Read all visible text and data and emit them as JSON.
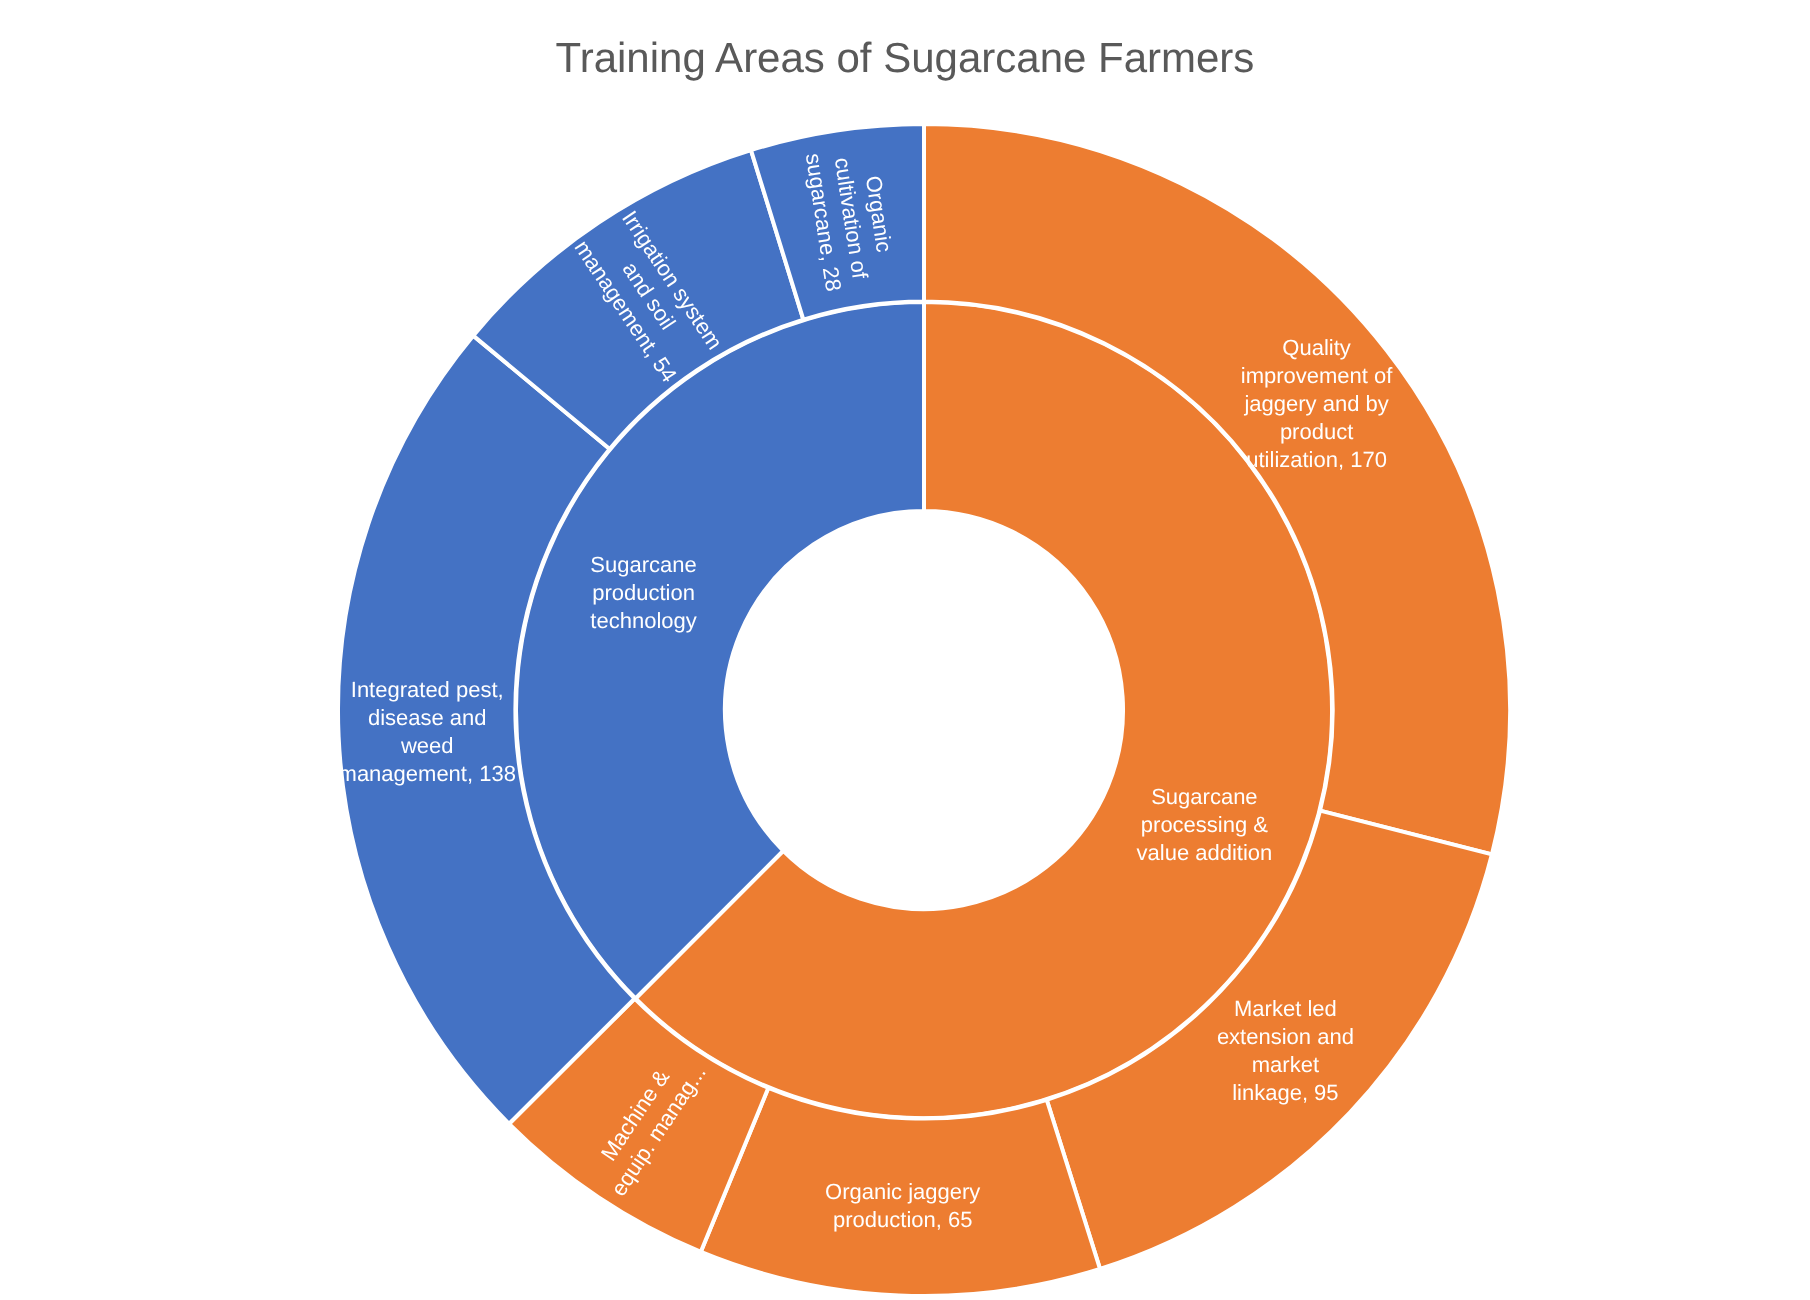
{
  "chart_data": [
    {
      "type": "donut",
      "title": "Training Areas of Sugarcane Farmers",
      "categories": [
        "Sugarcane processing & value addition",
        "Sugarcane production technology"
      ],
      "values": [
        62.5,
        37.5
      ],
      "colors": [
        "#ed7d31",
        "#4472c4"
      ]
    },
    {
      "type": "donut",
      "categories": [
        "Quality improvement of jaggery and by product utilization",
        "Market led extension and market linkage",
        "Organic jaggery production",
        "Machine & equip. manag...",
        "Integrated pest, disease and weed management",
        "Irrigation system and soil management",
        "Organic cultivation of sugarcane"
      ],
      "values": [
        170,
        95,
        65,
        37,
        138,
        54,
        28
      ],
      "value_labels": [
        "170",
        "95",
        "65",
        null,
        "138",
        "54",
        "28"
      ],
      "colors": [
        "#ed7d31",
        "#ed7d31",
        "#ed7d31",
        "#ed7d31",
        "#4472c4",
        "#4472c4",
        "#4472c4"
      ]
    }
  ]
}
